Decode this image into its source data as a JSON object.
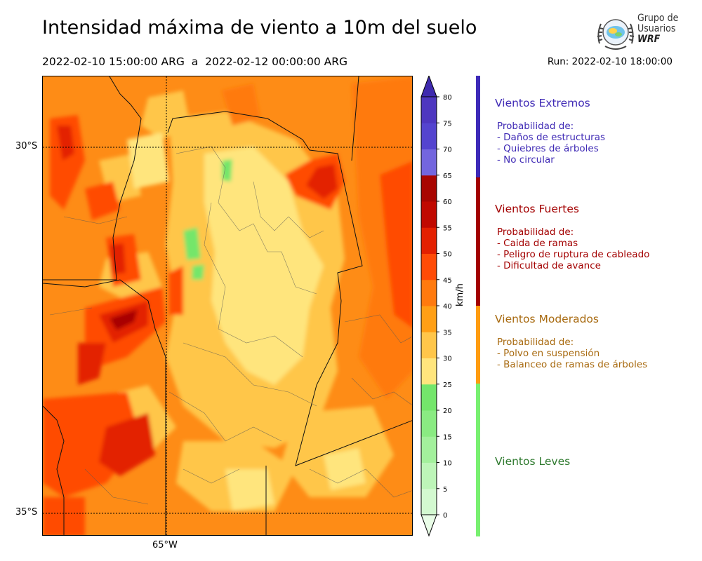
{
  "header": {
    "title": "Intensidad máxima de viento a 10m del suelo",
    "period": "2022-02-10 15:00:00 ARG  a  2022-02-12 00:00:00 ARG",
    "run": "Run: 2022-02-10 18:00:00"
  },
  "logo": {
    "line1": "Grupo de",
    "line2": "Usuarios",
    "line3": "WRF"
  },
  "map": {
    "lat_labels": [
      "30°S",
      "35°S"
    ],
    "lon_labels": [
      "65°W"
    ]
  },
  "colorbar": {
    "unit": "km/h",
    "ticks": [
      "0",
      "5",
      "10",
      "15",
      "20",
      "25",
      "30",
      "35",
      "40",
      "45",
      "50",
      "55",
      "60",
      "65",
      "70",
      "75",
      "80"
    ],
    "colors": [
      "#e9fde7",
      "#d3f9d0",
      "#bdf5b8",
      "#a3f09c",
      "#8aeb82",
      "#74e66b",
      "#ffe57d",
      "#ffc64a",
      "#ff9f15",
      "#ff7a0e",
      "#ff4b06",
      "#e32000",
      "#c00900",
      "#a80500",
      "#7366de",
      "#5444cf",
      "#4e37c0",
      "#3f2aaf"
    ]
  },
  "categories": [
    {
      "title": "Vientos Extremos",
      "color": "#3f2ab5",
      "lines": [
        "Probabilidad de:",
        "- Daños de estructuras",
        "- Quiebres de árboles",
        "- No circular"
      ]
    },
    {
      "title": "Vientos Fuertes",
      "color": "#a30000",
      "lines": [
        "Probabilidad de:",
        "- Caida de ramas",
        "- Peligro de ruptura de cableado",
        "- Dificultad de avance"
      ]
    },
    {
      "title": "Vientos Moderados",
      "color": "#a86a10",
      "lines": [
        "Probabilidad de:",
        "- Polvo en suspensión",
        "- Balanceo de ramas de árboles"
      ]
    },
    {
      "title": "Vientos Leves",
      "color": "#2f7a2f",
      "lines": []
    }
  ],
  "bar_colors": {
    "extreme": "#3d2ab8",
    "strong": "#a30000",
    "moderate": "#ff9c10",
    "light": "#78f070"
  }
}
